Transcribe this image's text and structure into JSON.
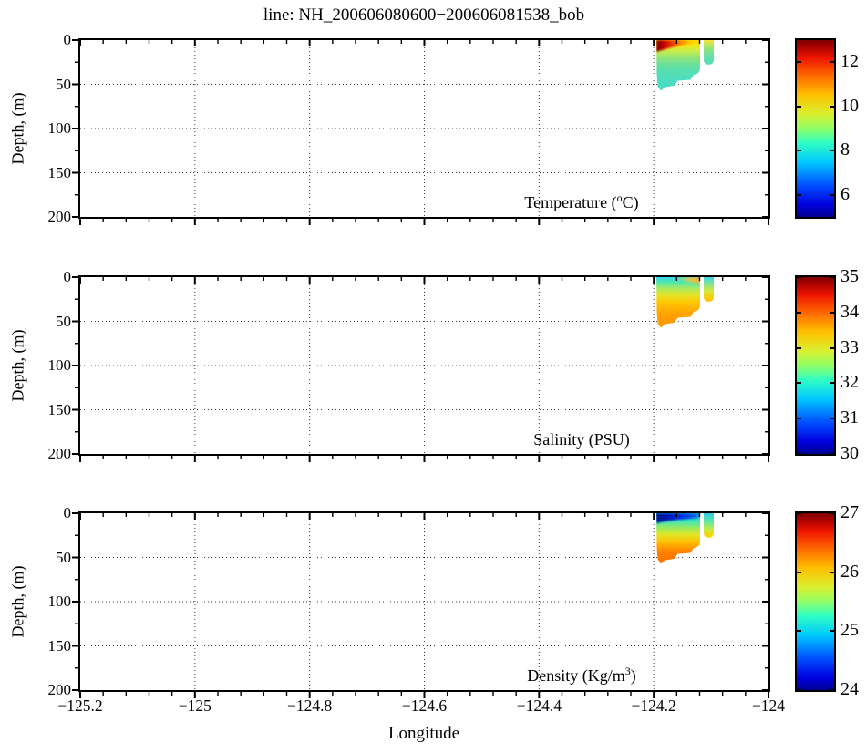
{
  "title": "line: NH_200606080600−200606081538_bob",
  "axes": {
    "x_label": "Longitude",
    "y_label": "Depth, (m)",
    "x_ticks": [
      "−125.2",
      "−125",
      "−124.8",
      "−124.6",
      "−124.4",
      "−124.2",
      "−124"
    ],
    "y_ticks": [
      "0",
      "50",
      "100",
      "150",
      "200"
    ]
  },
  "panels": [
    {
      "id": "temperature",
      "label_pre": "Temperature (",
      "label_sup": "o",
      "label_post": "C)",
      "colorbar": {
        "min": 5,
        "max": 13,
        "ticks": [
          {
            "label": "12",
            "value": 12
          },
          {
            "label": "10",
            "value": 10
          },
          {
            "label": "8",
            "value": 8
          },
          {
            "label": "6",
            "value": 6
          }
        ]
      }
    },
    {
      "id": "salinity",
      "label_pre": "Salinity (PSU)",
      "label_sup": "",
      "label_post": "",
      "colorbar": {
        "min": 30,
        "max": 35,
        "ticks": [
          {
            "label": "35",
            "value": 35
          },
          {
            "label": "34",
            "value": 34
          },
          {
            "label": "33",
            "value": 33
          },
          {
            "label": "32",
            "value": 32
          },
          {
            "label": "31",
            "value": 31
          },
          {
            "label": "30",
            "value": 30
          }
        ]
      }
    },
    {
      "id": "density",
      "label_pre": "Density (Kg/m",
      "label_sup": "3",
      "label_post": ")",
      "colorbar": {
        "min": 24,
        "max": 27,
        "ticks": [
          {
            "label": "27",
            "value": 27
          },
          {
            "label": "26",
            "value": 26
          },
          {
            "label": "25",
            "value": 25
          },
          {
            "label": "24",
            "value": 24
          }
        ]
      }
    }
  ],
  "chart_data": [
    {
      "type": "heatmap",
      "panel": "temperature",
      "title": "Temperature (°C)",
      "xlabel": "Longitude",
      "ylabel": "Depth, (m)",
      "xlim": [
        -125.2,
        -124.0
      ],
      "ylim": [
        200,
        0
      ],
      "x_major_ticks": [
        -125.2,
        -125.0,
        -124.8,
        -124.6,
        -124.4,
        -124.2,
        -124.0
      ],
      "x_minor_step": 0.04,
      "y_major_ticks": [
        0,
        50,
        100,
        150,
        200
      ],
      "y_minor_step": 25,
      "grid": "dotted",
      "colormap": "jet",
      "clim": [
        5,
        13
      ],
      "colorbar_ticks": [
        6,
        8,
        10,
        12
      ],
      "data_coverage": {
        "lon_range": [
          -124.2,
          -124.1
        ],
        "gap_lon": [
          -124.122,
          -124.116
        ],
        "max_depth_m": 57,
        "bottom_profile": [
          {
            "lon": -124.197,
            "depth_m": 52
          },
          {
            "lon": -124.19,
            "depth_m": 57
          },
          {
            "lon": -124.175,
            "depth_m": 53
          },
          {
            "lon": -124.158,
            "depth_m": 46
          },
          {
            "lon": -124.135,
            "depth_m": 45
          },
          {
            "lon": -124.128,
            "depth_m": 39
          },
          {
            "lon": -124.12,
            "depth_m": 38
          },
          {
            "lon": -124.11,
            "depth_m": 30
          },
          {
            "lon": -124.1,
            "depth_m": 30
          }
        ]
      },
      "profile": [
        {
          "depth_m": 0,
          "west": 13.0,
          "east": 10.5
        },
        {
          "depth_m": 5,
          "west": 11.5,
          "east": 10.3
        },
        {
          "depth_m": 10,
          "west": 10.2,
          "east": 10.0
        },
        {
          "depth_m": 20,
          "west": 9.3,
          "east": 9.2
        },
        {
          "depth_m": 30,
          "west": 8.8,
          "east": 8.8
        },
        {
          "depth_m": 45,
          "west": 8.4,
          "east": 8.4
        },
        {
          "depth_m": 55,
          "west": 8.3,
          "east": 8.3
        }
      ]
    },
    {
      "type": "heatmap",
      "panel": "salinity",
      "title": "Salinity (PSU)",
      "xlabel": "Longitude",
      "ylabel": "Depth, (m)",
      "xlim": [
        -125.2,
        -124.0
      ],
      "ylim": [
        200,
        0
      ],
      "x_major_ticks": [
        -125.2,
        -125.0,
        -124.8,
        -124.6,
        -124.4,
        -124.2,
        -124.0
      ],
      "x_minor_step": 0.04,
      "y_major_ticks": [
        0,
        50,
        100,
        150,
        200
      ],
      "y_minor_step": 25,
      "grid": "dotted",
      "colormap": "jet",
      "clim": [
        30,
        35
      ],
      "colorbar_ticks": [
        30,
        31,
        32,
        33,
        34,
        35
      ],
      "data_coverage": {
        "lon_range": [
          -124.2,
          -124.1
        ],
        "max_depth_m": 57
      },
      "profile": [
        {
          "depth_m": 0,
          "west": 31.8,
          "east": 32.4
        },
        {
          "depth_m": 8,
          "west": 32.5,
          "east": 32.8
        },
        {
          "depth_m": 14,
          "west": 32.9,
          "east": 33.0
        },
        {
          "depth_m": 20,
          "west": 33.15,
          "east": 33.2
        },
        {
          "depth_m": 30,
          "west": 33.4,
          "east": 33.4
        },
        {
          "depth_m": 45,
          "west": 33.6,
          "east": 33.6
        },
        {
          "depth_m": 55,
          "west": 33.7,
          "east": 33.7
        }
      ]
    },
    {
      "type": "heatmap",
      "panel": "density",
      "title": "Density (Kg/m³)",
      "xlabel": "Longitude",
      "ylabel": "Depth, (m)",
      "xlim": [
        -125.2,
        -124.0
      ],
      "ylim": [
        200,
        0
      ],
      "x_major_ticks": [
        -125.2,
        -125.0,
        -124.8,
        -124.6,
        -124.4,
        -124.2,
        -124.0
      ],
      "x_minor_step": 0.04,
      "y_major_ticks": [
        0,
        50,
        100,
        150,
        200
      ],
      "y_minor_step": 25,
      "grid": "dotted",
      "colormap": "jet",
      "clim": [
        24,
        27
      ],
      "colorbar_ticks": [
        24,
        25,
        26,
        27
      ],
      "data_coverage": {
        "lon_range": [
          -124.2,
          -124.1
        ],
        "max_depth_m": 57
      },
      "profile": [
        {
          "depth_m": 0,
          "west": 24.2,
          "east": 24.9
        },
        {
          "depth_m": 6,
          "west": 24.6,
          "east": 25.1
        },
        {
          "depth_m": 12,
          "west": 25.2,
          "east": 25.3
        },
        {
          "depth_m": 20,
          "west": 25.7,
          "east": 25.7
        },
        {
          "depth_m": 30,
          "west": 26.0,
          "east": 26.0
        },
        {
          "depth_m": 45,
          "west": 26.35,
          "east": 26.35
        },
        {
          "depth_m": 55,
          "west": 26.45,
          "east": 26.45
        }
      ]
    }
  ]
}
